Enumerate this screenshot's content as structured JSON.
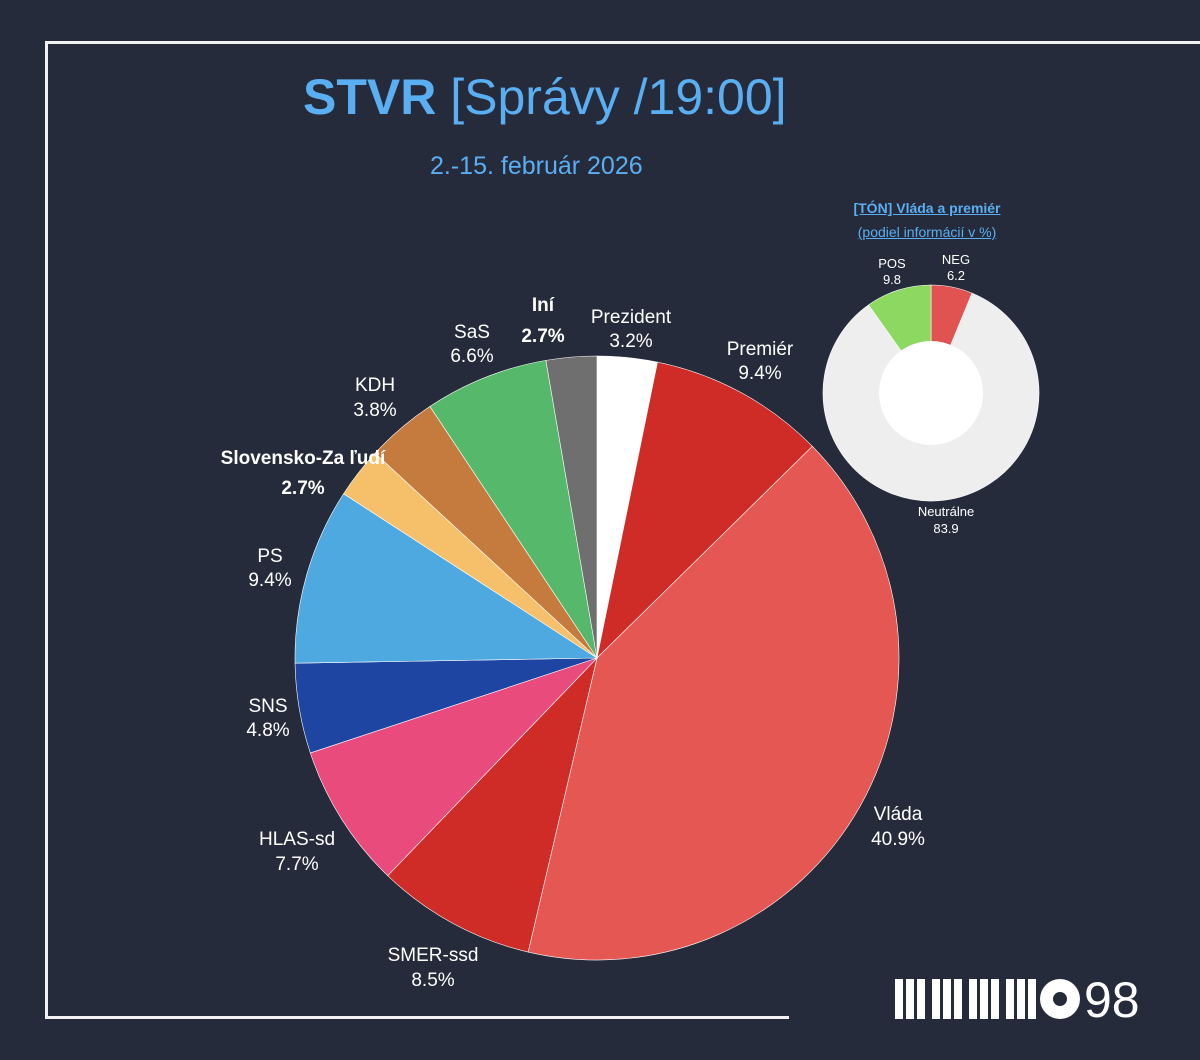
{
  "header": {
    "title_bold": "STVR",
    "title_rest": " [Správy /19:00]",
    "subtitle": "2.-15. február 2026"
  },
  "chart_data": [
    {
      "type": "pie",
      "start_angle_deg": 0,
      "direction": "clockwise",
      "slices": [
        {
          "label": "Prezident",
          "value": 3.2,
          "display": "3.2%",
          "color": "#ffffff"
        },
        {
          "label": "Premiér",
          "value": 9.4,
          "display": "9.4%",
          "color": "#cf2b27"
        },
        {
          "label": "Vláda",
          "value": 40.9,
          "display": "40.9%",
          "color": "#e55752"
        },
        {
          "label": "SMER-ssd",
          "value": 8.5,
          "display": "8.5%",
          "color": "#cf2b27"
        },
        {
          "label": "HLAS-sd",
          "value": 7.7,
          "display": "7.7%",
          "color": "#e94b7d"
        },
        {
          "label": "SNS",
          "value": 4.8,
          "display": "4.8%",
          "color": "#1f45a3"
        },
        {
          "label": "PS",
          "value": 9.4,
          "display": "9.4%",
          "color": "#4ea9e1"
        },
        {
          "label": "Slovensko-Za ľudí",
          "value": 2.7,
          "display": "2.7%",
          "color": "#f6c06b"
        },
        {
          "label": "KDH",
          "value": 3.8,
          "display": "3.8%",
          "color": "#c47b3d"
        },
        {
          "label": "SaS",
          "value": 6.6,
          "display": "6.6%",
          "color": "#55b86a"
        },
        {
          "label": "Iní",
          "value": 2.7,
          "display": "2.7%",
          "color": "#6f6f6f"
        }
      ]
    },
    {
      "type": "pie",
      "donut": true,
      "title": "[TÓN] Vláda a premiér ",
      "subtitle": "(podiel informácií v %)",
      "start_angle_deg": 0,
      "direction": "clockwise",
      "slices": [
        {
          "label": "NEG",
          "value": 6.2,
          "display": "6.2",
          "color": "#e15350"
        },
        {
          "label": "Neutrálne",
          "value": 83.9,
          "display": "83.9",
          "color": "#eeeeee"
        },
        {
          "label": "POS",
          "value": 9.8,
          "display": "9.8",
          "color": "#8cd861"
        }
      ]
    }
  ],
  "logo": {
    "number": "98"
  }
}
